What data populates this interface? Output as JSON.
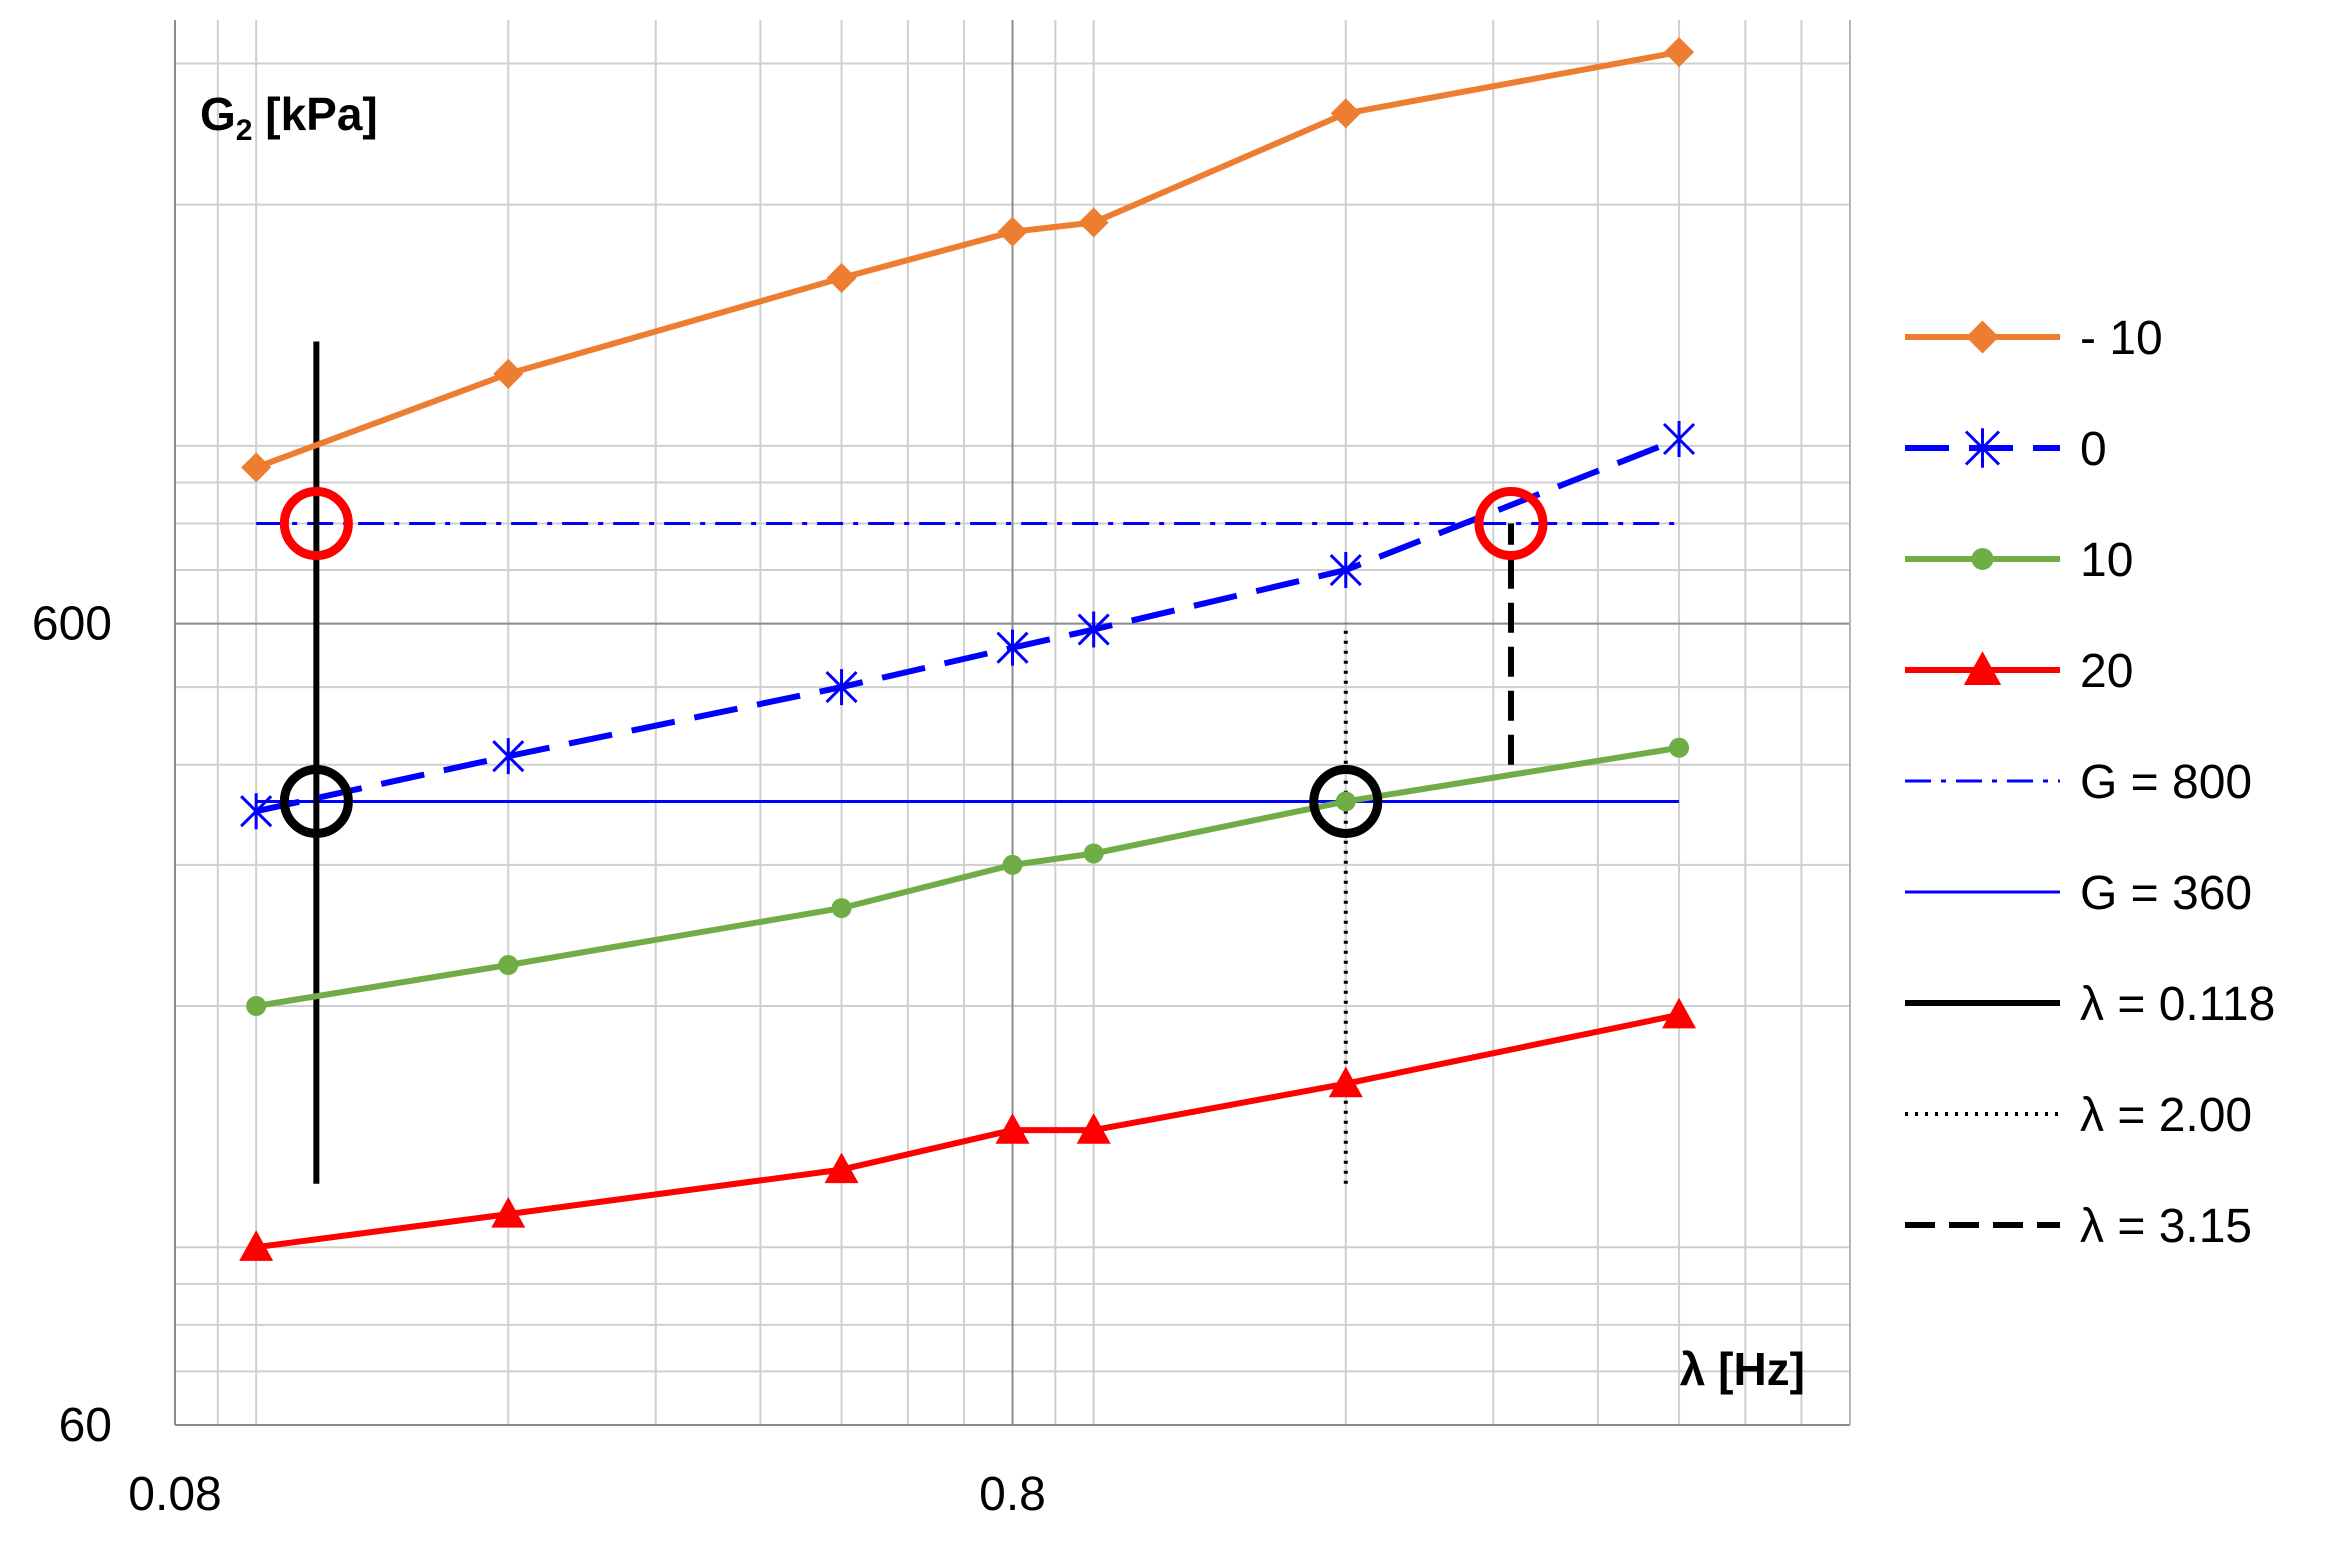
{
  "chart_data": {
    "type": "line",
    "x_scale": "log",
    "y_scale": "log",
    "xlim": [
      0.08,
      8.0
    ],
    "ylim": [
      60,
      3400
    ],
    "x_tick_labels": [
      "0.08",
      "0.8"
    ],
    "x_tick_values": [
      0.08,
      0.8
    ],
    "y_tick_labels": [
      "60",
      "600"
    ],
    "y_tick_values": [
      60,
      600
    ],
    "xlabel": "λ [Hz]",
    "ylabel_main": "G",
    "ylabel_sub": "2",
    "ylabel_unit": " [kPa]",
    "grid": true,
    "legend_position": "right",
    "series": [
      {
        "name": "- 10",
        "color": "#ED7D31",
        "dash": "solid",
        "marker": "diamond",
        "x": [
          0.1,
          0.2,
          0.5,
          0.8,
          1.0,
          2.0,
          5.0
        ],
        "y": [
          940,
          1230,
          1620,
          1850,
          1900,
          2600,
          3100
        ]
      },
      {
        "name": " 0",
        "color": "#0000FF",
        "dash": "dashed",
        "marker": "asterisk",
        "x": [
          0.1,
          0.2,
          0.5,
          0.8,
          1.0,
          2.0,
          5.0
        ],
        "y": [
          350,
          410,
          500,
          560,
          590,
          700,
          1020
        ]
      },
      {
        "name": "10",
        "color": "#70AD47",
        "dash": "solid",
        "marker": "circle",
        "x": [
          0.1,
          0.2,
          0.5,
          0.8,
          1.0,
          2.0,
          5.0
        ],
        "y": [
          200,
          225,
          265,
          300,
          310,
          360,
          420
        ]
      },
      {
        "name": "20",
        "color": "#FF0000",
        "dash": "solid",
        "marker": "triangle",
        "x": [
          0.1,
          0.2,
          0.5,
          0.8,
          1.0,
          2.0,
          5.0
        ],
        "y": [
          100,
          110,
          125,
          140,
          140,
          160,
          195
        ]
      }
    ],
    "reference_lines": [
      {
        "name": "G = 800",
        "orientation": "horizontal",
        "value": 800,
        "from": 0.1,
        "to": 5.0,
        "color": "#0000FF",
        "dash": "dashdot"
      },
      {
        "name": "G = 360",
        "orientation": "horizontal",
        "value": 360,
        "from": 0.1,
        "to": 5.0,
        "color": "#0000FF",
        "dash": "solid"
      },
      {
        "name": "λ = 0.118",
        "orientation": "vertical",
        "value": 0.118,
        "from": 120,
        "to": 1350,
        "color": "#000000",
        "dash": "solid"
      },
      {
        "name": "λ = 2.00",
        "orientation": "vertical",
        "value": 2.0,
        "from": 120,
        "to": 600,
        "color": "#000000",
        "dash": "dotted"
      },
      {
        "name": "λ = 3.15",
        "orientation": "vertical",
        "value": 3.15,
        "from": 400,
        "to": 800,
        "color": "#000000",
        "dash": "dashed"
      }
    ],
    "highlight_circles": [
      {
        "x": 0.118,
        "y": 800,
        "color": "#FF0000"
      },
      {
        "x": 3.15,
        "y": 800,
        "color": "#FF0000"
      },
      {
        "x": 0.118,
        "y": 360,
        "color": "#000000"
      },
      {
        "x": 2.0,
        "y": 360,
        "color": "#000000"
      }
    ],
    "legend": [
      "- 10",
      " 0",
      "10",
      "20",
      "G = 800",
      "G = 360",
      "λ = 0.118",
      "λ = 2.00",
      "λ = 3.15"
    ]
  }
}
